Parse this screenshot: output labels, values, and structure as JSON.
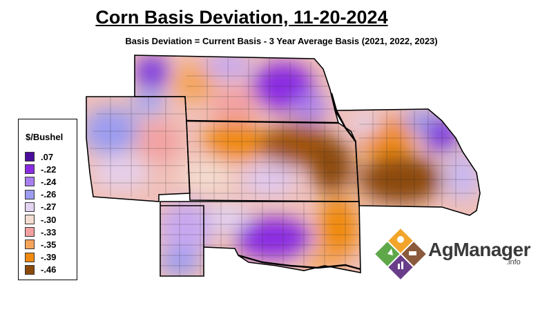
{
  "title": "Corn Basis Deviation, 11-20-2024",
  "subtitle": "Basis Deviation = Current Basis - 3 Year Average Basis (2021, 2022, 2023)",
  "legend": {
    "title": "$/Bushel",
    "items": [
      {
        "label": ".07",
        "color": "#4b0e9c"
      },
      {
        "label": "-.22",
        "color": "#8a2be2"
      },
      {
        "label": "-.24",
        "color": "#a97ef0"
      },
      {
        "label": "-.26",
        "color": "#9c9cf0"
      },
      {
        "label": "-.27",
        "color": "#e2d4f2"
      },
      {
        "label": "-.30",
        "color": "#f4dcd0"
      },
      {
        "label": "-.33",
        "color": "#f2a0a0"
      },
      {
        "label": "-.35",
        "color": "#f5a55a"
      },
      {
        "label": "-.39",
        "color": "#f08a10"
      },
      {
        "label": "-.46",
        "color": "#8b4a0a"
      }
    ]
  },
  "logo": {
    "name": "AgManager",
    "suffix": ".info"
  }
}
